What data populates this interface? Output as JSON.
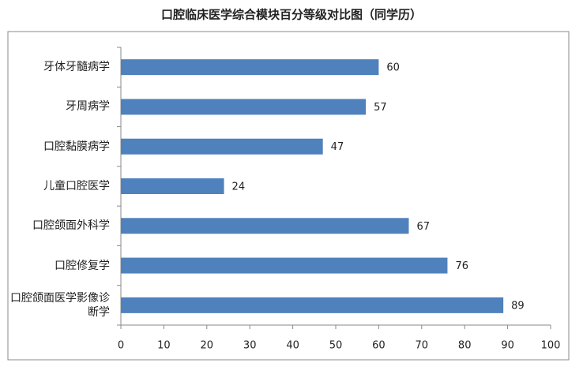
{
  "chart_data": {
    "type": "barh",
    "title": "口腔临床医学综合模块百分等级对比图（同学历）",
    "categories": [
      "牙体牙髓病学",
      "牙周病学",
      "口腔黏膜病学",
      "儿童口腔医学",
      "口腔颌面外科学",
      "口腔修复学",
      "口腔颌面医学影像诊断学"
    ],
    "values": [
      60,
      57,
      47,
      24,
      67,
      76,
      89
    ],
    "color": "#4f81bd",
    "xlim": [
      0,
      100
    ],
    "xticks": [
      0,
      10,
      20,
      30,
      40,
      50,
      60,
      70,
      80,
      90,
      100
    ],
    "grid": false
  }
}
